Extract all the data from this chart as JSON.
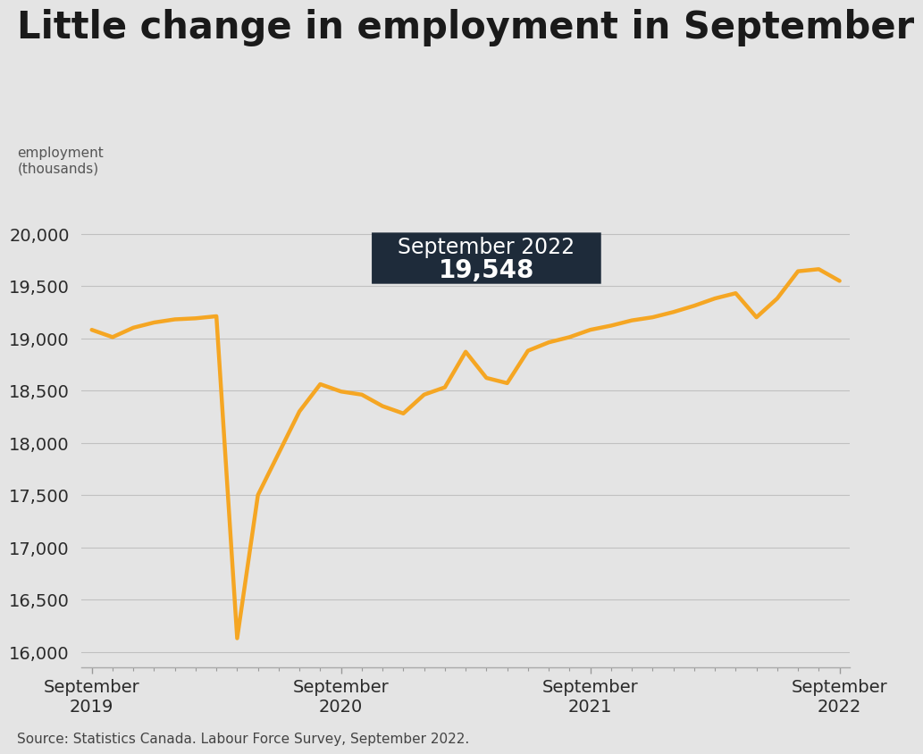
{
  "title": "Little change in employment in September",
  "ylabel_line1": "employment",
  "ylabel_line2": "(thousands)",
  "source": "Source: Statistics Canada. Labour Force Survey, September 2022.",
  "annotation_label": "September 2022",
  "annotation_value": "19,548",
  "line_color": "#F5A623",
  "line_width": 3.2,
  "background_color": "#E4E4E4",
  "annotation_box_color": "#1E2B3A",
  "ylim": [
    15850,
    20300
  ],
  "yticks": [
    16000,
    16500,
    17000,
    17500,
    18000,
    18500,
    19000,
    19500,
    20000
  ],
  "xtick_labels": [
    "September\n2019",
    "September\n2020",
    "September\n2021",
    "September\n2022"
  ],
  "xtick_positions": [
    0,
    12,
    24,
    36
  ],
  "months": [
    0,
    1,
    2,
    3,
    4,
    5,
    6,
    7,
    8,
    9,
    10,
    11,
    12,
    13,
    14,
    15,
    16,
    17,
    18,
    19,
    20,
    21,
    22,
    23,
    24,
    25,
    26,
    27,
    28,
    29,
    30,
    31,
    32,
    33,
    34,
    35,
    36
  ],
  "values": [
    19080,
    19010,
    19100,
    19150,
    19180,
    19190,
    19210,
    16130,
    17500,
    17900,
    18300,
    18560,
    18490,
    18460,
    18350,
    18280,
    18460,
    18530,
    18870,
    18620,
    18570,
    18880,
    18960,
    19010,
    19080,
    19120,
    19170,
    19200,
    19250,
    19310,
    19380,
    19430,
    19200,
    19380,
    19640,
    19660,
    19548
  ]
}
